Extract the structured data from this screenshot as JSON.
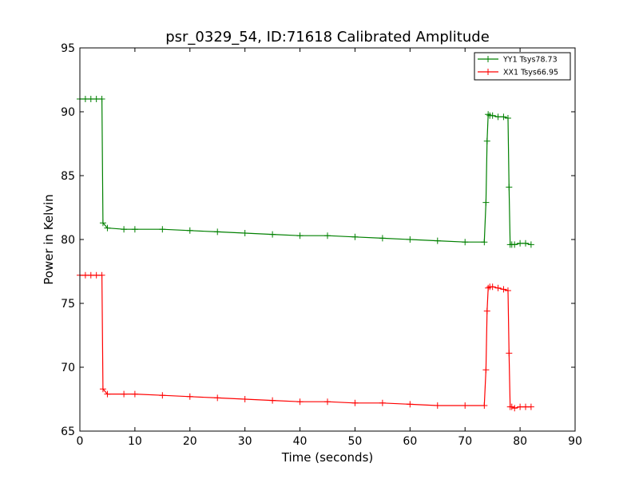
{
  "chart_data": {
    "type": "line",
    "title": "psr_0329_54, ID:71618 Calibrated Amplitude",
    "xlabel": "Time (seconds)",
    "ylabel": "Power in Kelvin",
    "xlim": [
      0,
      90
    ],
    "ylim": [
      65,
      95
    ],
    "xticks": [
      0,
      10,
      20,
      30,
      40,
      50,
      60,
      70,
      80,
      90
    ],
    "yticks": [
      65,
      70,
      75,
      80,
      85,
      90,
      95
    ],
    "grid": false,
    "legend_position": "top-right",
    "marker": "+",
    "series": [
      {
        "name": "YY1 Tsys78.73",
        "color": "#008000",
        "x": [
          0.0,
          1.0,
          2.0,
          3.0,
          4.0,
          4.2,
          5.0,
          8.0,
          10.0,
          15.0,
          20.0,
          25.0,
          30.0,
          35.0,
          40.0,
          45.0,
          50.0,
          55.0,
          60.0,
          65.0,
          70.0,
          73.5,
          73.8,
          74.0,
          74.2,
          74.5,
          75.0,
          76.0,
          77.0,
          77.8,
          78.0,
          78.2,
          78.5,
          79.0,
          80.0,
          81.0,
          82.0
        ],
        "y": [
          91.0,
          91.0,
          91.0,
          91.0,
          91.0,
          81.3,
          80.9,
          80.8,
          80.8,
          80.8,
          80.7,
          80.6,
          80.5,
          80.4,
          80.3,
          80.3,
          80.2,
          80.1,
          80.0,
          79.9,
          79.8,
          79.8,
          82.9,
          87.7,
          89.8,
          89.7,
          89.7,
          89.6,
          89.6,
          89.5,
          84.1,
          79.6,
          79.6,
          79.6,
          79.7,
          79.7,
          79.6
        ]
      },
      {
        "name": "XX1 Tsys66.95",
        "color": "#ff0000",
        "x": [
          0.0,
          1.0,
          2.0,
          3.0,
          4.0,
          4.2,
          5.0,
          8.0,
          10.0,
          15.0,
          20.0,
          25.0,
          30.0,
          35.0,
          40.0,
          45.0,
          50.0,
          55.0,
          60.0,
          65.0,
          70.0,
          73.5,
          73.8,
          74.0,
          74.2,
          74.5,
          75.0,
          76.0,
          77.0,
          77.8,
          78.0,
          78.2,
          78.5,
          79.0,
          80.0,
          81.0,
          82.0
        ],
        "y": [
          77.2,
          77.2,
          77.2,
          77.2,
          77.2,
          68.3,
          67.9,
          67.9,
          67.9,
          67.8,
          67.7,
          67.6,
          67.5,
          67.4,
          67.3,
          67.3,
          67.2,
          67.2,
          67.1,
          67.0,
          67.0,
          67.0,
          69.8,
          74.4,
          76.2,
          76.3,
          76.3,
          76.2,
          76.1,
          76.0,
          71.1,
          66.9,
          66.9,
          66.8,
          66.9,
          66.9,
          66.9
        ]
      }
    ]
  }
}
